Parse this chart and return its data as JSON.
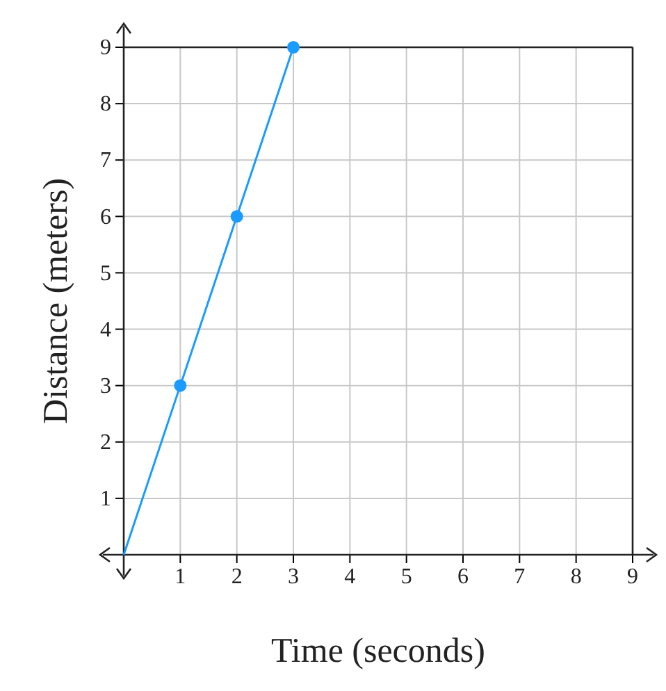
{
  "chart_data": {
    "type": "line",
    "xlabel": "Time (seconds)",
    "ylabel": "Distance (meters)",
    "xlim": [
      0,
      9
    ],
    "ylim": [
      0,
      9
    ],
    "xticks": [
      {
        "value": 0,
        "label": null
      },
      1,
      2,
      3,
      4,
      5,
      6,
      7,
      8,
      9
    ],
    "yticks": [
      {
        "value": 0,
        "label": null
      },
      1,
      2,
      3,
      4,
      5,
      6,
      7,
      8,
      9
    ],
    "grid": true,
    "series": [
      {
        "color": "#1a9bff",
        "x": [
          0,
          1,
          2,
          3
        ],
        "values": [
          0,
          3,
          6,
          9
        ],
        "marker": "none"
      },
      {
        "type": "scatter",
        "color": "#1a9bff",
        "x": [
          1,
          2,
          3
        ],
        "values": [
          3,
          6,
          9
        ],
        "marker": "circle"
      }
    ]
  }
}
